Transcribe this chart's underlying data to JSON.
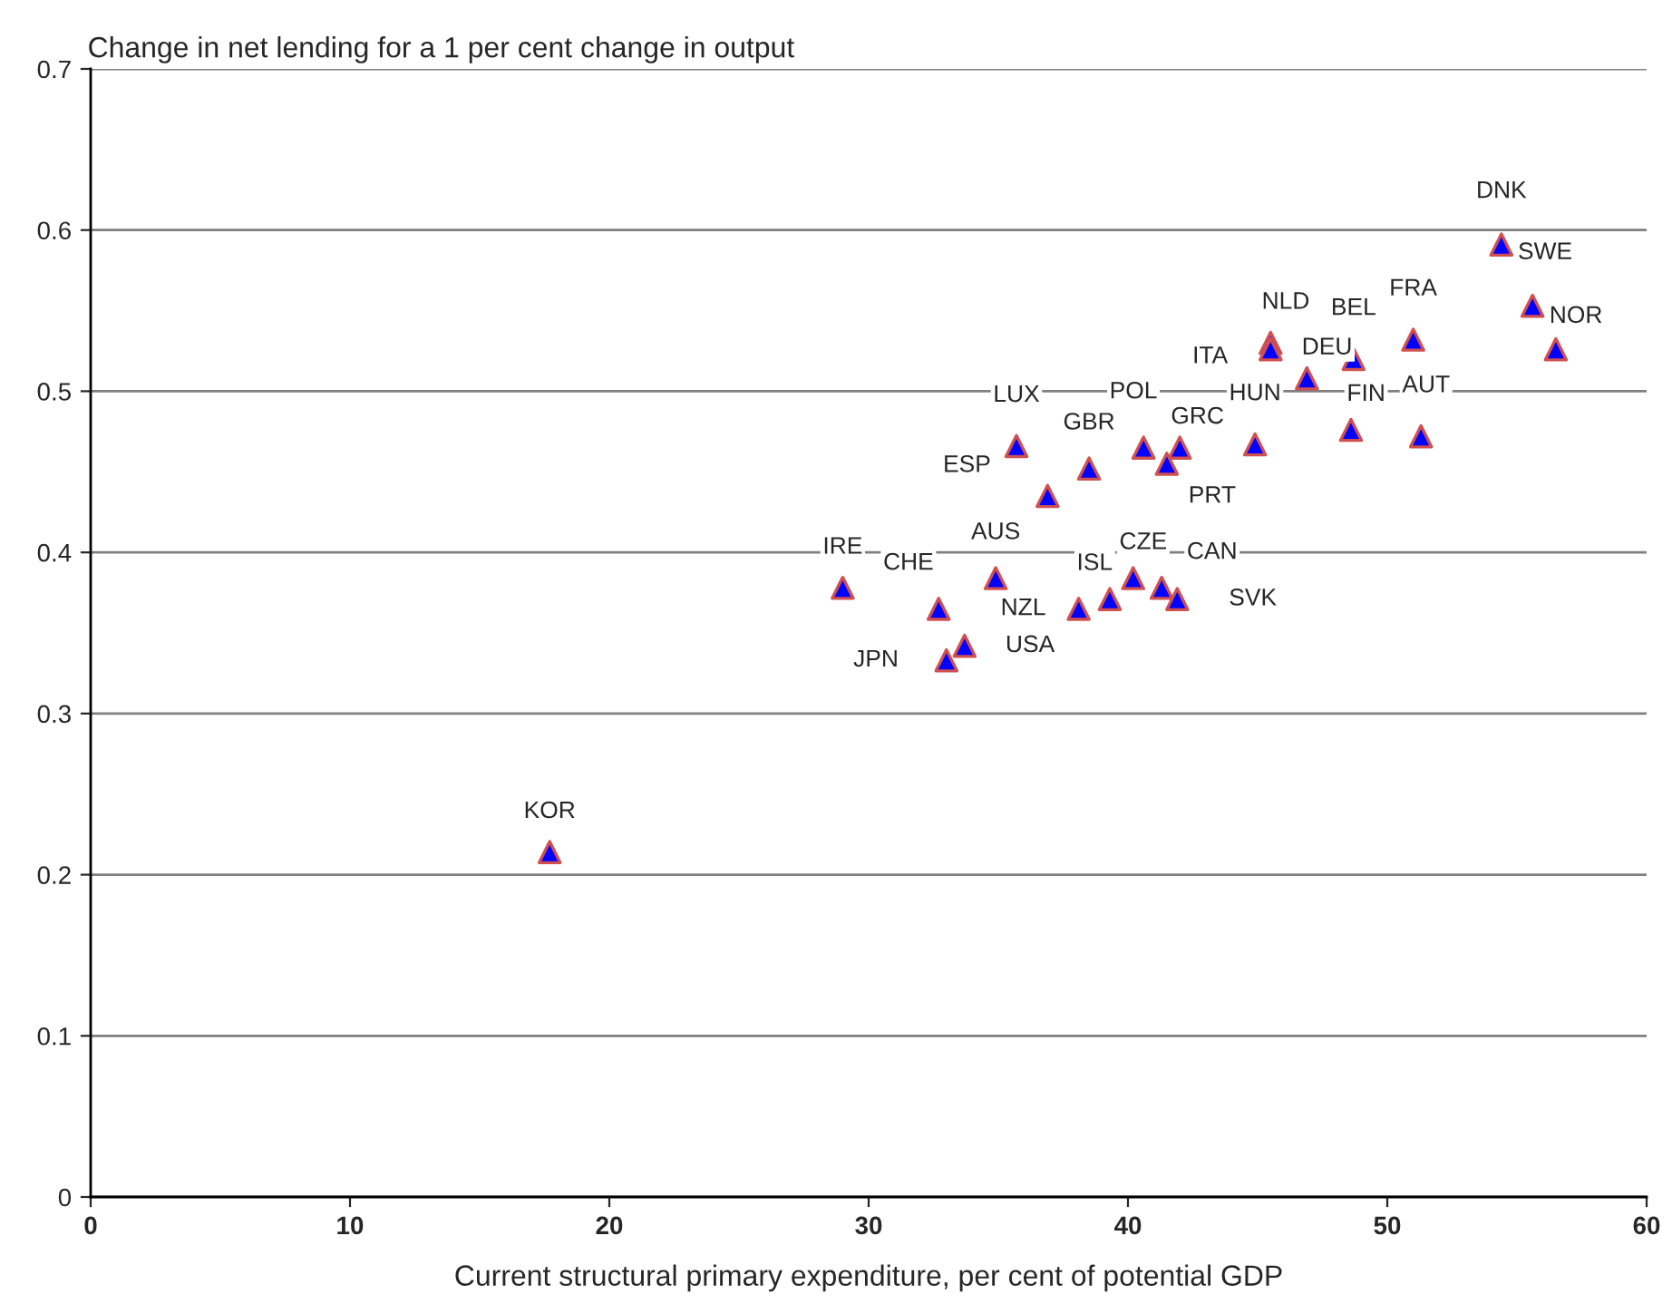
{
  "chart_data": {
    "type": "scatter",
    "ylabel": "Change in net lending for a 1 per cent change in output",
    "xlabel": "Current structural primary expenditure, per cent of potential GDP",
    "x": [
      17.7,
      29.0,
      32.7,
      34.9,
      33.0,
      33.7,
      38.1,
      39.3,
      40.2,
      41.3,
      41.9,
      35.7,
      36.9,
      38.5,
      40.6,
      42.0,
      41.5,
      44.9,
      45.5,
      45.5,
      46.9,
      48.7,
      51.0,
      48.6,
      51.3,
      54.4,
      55.6,
      56.5
    ],
    "series": [
      {
        "color": "#0000ff",
        "values": [
          0.214,
          0.378,
          0.365,
          0.384,
          0.333,
          0.342,
          0.365,
          0.371,
          0.384,
          0.378,
          0.371,
          0.466,
          0.435,
          0.452,
          0.465,
          0.465,
          0.455,
          0.467,
          0.53,
          0.526,
          0.508,
          0.52,
          0.532,
          0.476,
          0.472,
          0.591,
          0.553,
          0.526
        ]
      }
    ],
    "annotations": [
      {
        "text": "KOR",
        "x": 17.7,
        "y": 0.214
      },
      {
        "text": "IRE",
        "x": 29.0,
        "y": 0.378
      },
      {
        "text": "CHE",
        "x": 32.7,
        "y": 0.365
      },
      {
        "text": "AUS",
        "x": 34.9,
        "y": 0.384
      },
      {
        "text": "JPN",
        "x": 33.0,
        "y": 0.333
      },
      {
        "text": "USA",
        "x": 33.7,
        "y": 0.342
      },
      {
        "text": "NZL",
        "x": 38.1,
        "y": 0.365
      },
      {
        "text": "ISL",
        "x": 39.3,
        "y": 0.371
      },
      {
        "text": "CZE",
        "x": 40.2,
        "y": 0.384
      },
      {
        "text": "CAN",
        "x": 41.3,
        "y": 0.378
      },
      {
        "text": "SVK",
        "x": 41.9,
        "y": 0.371
      },
      {
        "text": "LUX",
        "x": 35.7,
        "y": 0.466
      },
      {
        "text": "ESP",
        "x": 36.9,
        "y": 0.435
      },
      {
        "text": "GBR",
        "x": 38.5,
        "y": 0.452
      },
      {
        "text": "POL",
        "x": 40.6,
        "y": 0.465
      },
      {
        "text": "GRC",
        "x": 42.0,
        "y": 0.465
      },
      {
        "text": "PRT",
        "x": 41.5,
        "y": 0.455
      },
      {
        "text": "HUN",
        "x": 44.9,
        "y": 0.467
      },
      {
        "text": "NLD",
        "x": 45.5,
        "y": 0.53
      },
      {
        "text": "ITA",
        "x": 45.5,
        "y": 0.526
      },
      {
        "text": "DEU",
        "x": 46.9,
        "y": 0.508
      },
      {
        "text": "BEL",
        "x": 48.7,
        "y": 0.52
      },
      {
        "text": "FRA",
        "x": 51.0,
        "y": 0.532
      },
      {
        "text": "FIN",
        "x": 48.6,
        "y": 0.476
      },
      {
        "text": "AUT",
        "x": 51.3,
        "y": 0.472
      },
      {
        "text": "DNK",
        "x": 54.4,
        "y": 0.591
      },
      {
        "text": "SWE",
        "x": 55.6,
        "y": 0.553
      },
      {
        "text": "NOR",
        "x": 56.5,
        "y": 0.526
      }
    ],
    "xlim": [
      0,
      60
    ],
    "xticks": [
      0,
      10,
      20,
      30,
      40,
      50,
      60
    ],
    "ylim": [
      0,
      0.7
    ],
    "yticks": [
      0,
      0.1,
      0.2,
      0.3,
      0.4,
      0.5,
      0.6,
      0.7
    ],
    "grid": "y",
    "marker": "triangle",
    "legend": false
  }
}
